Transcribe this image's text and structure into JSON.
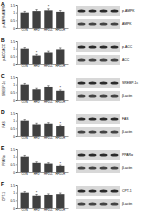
{
  "chart_data": [
    {
      "type": "bar",
      "title": "A",
      "y_label": "p-AMPK/AMPK",
      "categories": [
        "CON",
        "HFD",
        "HFD+L",
        "HFD+H"
      ],
      "values": [
        1,
        1.1,
        1.15,
        1.05
      ],
      "errors": [
        0.08,
        0.1,
        0.1,
        0.09
      ],
      "color": "#404040",
      "ylim": [
        0,
        1.5
      ],
      "yticks": [
        0,
        0.5,
        1,
        1.5
      ],
      "annotations": [
        {
          "category": "HFD+L",
          "text": "*"
        }
      ],
      "blot_labels": [
        "p-AMPK",
        "AMPK"
      ]
    },
    {
      "type": "bar",
      "title": "B",
      "y_label": "p-ACC/ACC",
      "categories": [
        "CON",
        "HFD",
        "HFD+L",
        "HFD+H"
      ],
      "values": [
        1,
        0.55,
        0.75,
        0.95
      ],
      "errors": [
        0.07,
        0.08,
        0.09,
        0.1
      ],
      "color": "#404040",
      "ylim": [
        0,
        1.5
      ],
      "yticks": [
        0,
        0.5,
        1,
        1.5
      ],
      "annotations": [
        {
          "category": "HFD",
          "text": "*"
        }
      ],
      "blot_labels": [
        "p-ACC",
        "ACC"
      ]
    },
    {
      "type": "bar",
      "title": "C",
      "y_label": "SREBP-1c",
      "categories": [
        "CON",
        "HFD",
        "HFD+L",
        "HFD+H"
      ],
      "values": [
        1,
        0.7,
        0.85,
        0.6
      ],
      "errors": [
        0.08,
        0.07,
        0.08,
        0.06
      ],
      "color": "#404040",
      "ylim": [
        0,
        1.5
      ],
      "yticks": [
        0,
        0.5,
        1,
        1.5
      ],
      "annotations": [
        {
          "category": "HFD+H",
          "text": "*"
        }
      ],
      "blot_labels": [
        "SREBP-1c",
        "β-actin"
      ]
    },
    {
      "type": "bar",
      "title": "D",
      "y_label": "FAS",
      "categories": [
        "CON",
        "HFD",
        "HFD+L",
        "HFD+H"
      ],
      "values": [
        1,
        0.75,
        0.8,
        0.65
      ],
      "errors": [
        0.07,
        0.08,
        0.07,
        0.06
      ],
      "color": "#404040",
      "ylim": [
        0,
        1.5
      ],
      "yticks": [
        0,
        0.5,
        1,
        1.5
      ],
      "annotations": [
        {
          "category": "HFD+H",
          "text": "*"
        }
      ],
      "blot_labels": [
        "FAS",
        "β-actin"
      ]
    },
    {
      "type": "bar",
      "title": "E",
      "y_label": "PPARα",
      "categories": [
        "CON",
        "HFD",
        "HFD+L",
        "HFD+H"
      ],
      "values": [
        1,
        0.6,
        0.55,
        0.4
      ],
      "errors": [
        0.08,
        0.07,
        0.06,
        0.05
      ],
      "color": "#404040",
      "ylim": [
        0,
        1.5
      ],
      "yticks": [
        0,
        0.5,
        1,
        1.5
      ],
      "annotations": [
        {
          "category": "HFD+H",
          "text": "*"
        }
      ],
      "blot_labels": [
        "PPARα",
        "β-actin"
      ]
    },
    {
      "type": "bar",
      "title": "F",
      "y_label": "CPT-1",
      "categories": [
        "CON",
        "HFD",
        "HFD+L",
        "HFD+H"
      ],
      "values": [
        1,
        0.8,
        0.85,
        0.9
      ],
      "errors": [
        0.07,
        0.08,
        0.07,
        0.08
      ],
      "color": "#404040",
      "ylim": [
        0,
        1.5
      ],
      "yticks": [
        0,
        0.5,
        1,
        1.5
      ],
      "annotations": [
        {
          "category": "HFD",
          "text": "*"
        }
      ],
      "blot_labels": [
        "CPT-1",
        "β-actin"
      ]
    }
  ]
}
